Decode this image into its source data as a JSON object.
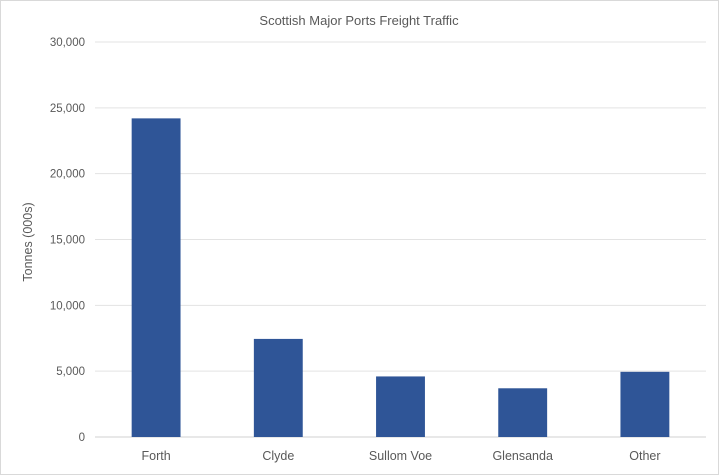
{
  "chart_data": {
    "type": "bar",
    "title": "Scottish Major Ports Freight Traffic",
    "xlabel": "",
    "ylabel": "Tonnes (000s)",
    "categories": [
      "Forth",
      "Clyde",
      "Sullom Voe",
      "Glensanda",
      "Other"
    ],
    "values": [
      24200,
      7450,
      4600,
      3700,
      4950
    ],
    "ylim": [
      0,
      30000
    ],
    "yticks": [
      0,
      5000,
      10000,
      15000,
      20000,
      25000,
      30000
    ],
    "ytick_labels": [
      "0",
      "5,000",
      "10,000",
      "15,000",
      "20,000",
      "25,000",
      "30,000"
    ],
    "grid": true,
    "legend": "none",
    "bar_color": "#2f5597"
  }
}
